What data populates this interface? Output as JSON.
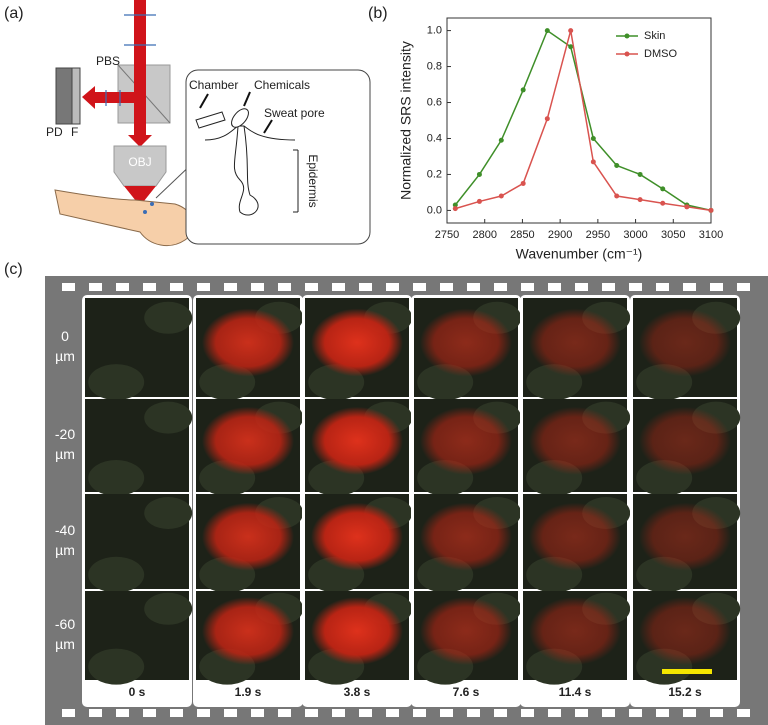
{
  "panel_labels": [
    "(a)",
    "(b)",
    "(c)"
  ],
  "schematic": {
    "pbs": "PBS",
    "pd": "PD",
    "f": "F",
    "obj": "OBJ",
    "chamber": "Chamber",
    "chemicals": "Chemicals",
    "sweat_pore": "Sweat pore",
    "epidermis": "Epidermis"
  },
  "chart_data": {
    "type": "line",
    "x_label": "Wavenumber (cm⁻¹)",
    "y_label": "Normalized SRS intensity",
    "x": [
      2761,
      2793,
      2822,
      2851,
      2883,
      2914,
      2944,
      2975,
      3006,
      3036,
      3068,
      3100
    ],
    "series": [
      {
        "name": "Skin",
        "color": "#3f8f29",
        "values": [
          0.03,
          0.2,
          0.39,
          0.67,
          1.0,
          0.91,
          0.4,
          0.25,
          0.2,
          0.12,
          0.03,
          0.0
        ]
      },
      {
        "name": "DMSO",
        "color": "#d9534f",
        "values": [
          0.01,
          0.05,
          0.08,
          0.15,
          0.51,
          1.0,
          0.27,
          0.08,
          0.06,
          0.04,
          0.02,
          0.0
        ]
      }
    ],
    "xlim": [
      2750,
      3100
    ],
    "xticks": [
      2750,
      2800,
      2850,
      2900,
      2950,
      3000,
      3050,
      3100
    ],
    "ylim": [
      -0.07,
      1.07
    ],
    "yticks": [
      {
        "value": 0,
        "label": "0.0"
      },
      {
        "value": 0.2,
        "label": "0.2"
      },
      {
        "value": 0.4,
        "label": "0.4"
      },
      {
        "value": 0.6,
        "label": "0.6"
      },
      {
        "value": 0.8,
        "label": "0.8"
      },
      {
        "value": 1,
        "label": "1.0"
      }
    ],
    "legend": "upper right",
    "grid": false
  },
  "filmstrip": {
    "depths": [
      {
        "value": "0",
        "unit": "µm"
      },
      {
        "value": "-20",
        "unit": "µm"
      },
      {
        "value": "-40",
        "unit": "µm"
      },
      {
        "value": "-60",
        "unit": "µm"
      }
    ],
    "times": [
      "0 s",
      "1.9 s",
      "3.8 s",
      "7.6 s",
      "11.4 s",
      "15.2 s"
    ]
  }
}
